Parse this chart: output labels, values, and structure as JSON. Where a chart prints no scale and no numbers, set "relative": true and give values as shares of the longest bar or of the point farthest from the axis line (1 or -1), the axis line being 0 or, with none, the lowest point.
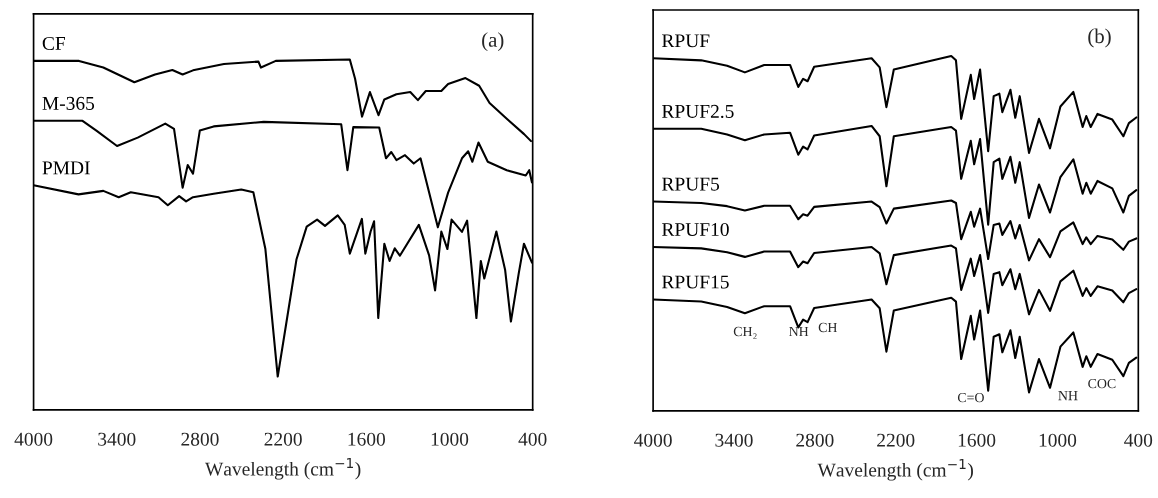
{
  "chart_data": [
    {
      "type": "line",
      "relative": true,
      "xlabel": "Wavelength (cm$^{−1}$)",
      "annotations": [
        "(a)"
      ],
      "xlim": [
        4000,
        400
      ],
      "xticks": [
        4000,
        3400,
        2800,
        2200,
        1600,
        1000,
        400
      ],
      "tick_labels": "x",
      "grid": false,
      "legend": false,
      "series": [
        {
          "name": "CF",
          "color": "#000000",
          "x": [
            4000,
            3672,
            3497,
            3273,
            3124,
            2999,
            2925,
            2850,
            2627,
            2378,
            2360,
            2253,
            1719,
            1681,
            1631,
            1574,
            1512,
            1470,
            1383,
            1283,
            1228,
            1171,
            1059,
            1010,
            885,
            786,
            711,
            587,
            462,
            412
          ],
          "values": [
            0.996,
            0.996,
            0.977,
            0.935,
            0.957,
            0.97,
            0.957,
            0.969,
            0.987,
            0.994,
            0.977,
            0.996,
            1.0,
            0.945,
            0.837,
            0.907,
            0.841,
            0.886,
            0.901,
            0.907,
            0.884,
            0.91,
            0.91,
            0.93,
            0.947,
            0.925,
            0.876,
            0.831,
            0.787,
            0.767
          ]
        },
        {
          "name": "M-365",
          "color": "#000000",
          "x": [
            4000,
            3647,
            3547,
            3398,
            3249,
            3050,
            2987,
            2925,
            2888,
            2850,
            2801,
            2701,
            2340,
            1781,
            1736,
            1694,
            1507,
            1458,
            1420,
            1383,
            1321,
            1258,
            1209,
            1084,
            1010,
            910,
            865,
            835,
            791,
            724,
            587,
            450,
            425,
            405
          ],
          "values": [
            0.825,
            0.825,
            0.797,
            0.753,
            0.777,
            0.817,
            0.802,
            0.634,
            0.699,
            0.674,
            0.797,
            0.809,
            0.822,
            0.815,
            0.684,
            0.807,
            0.806,
            0.718,
            0.736,
            0.713,
            0.727,
            0.703,
            0.718,
            0.521,
            0.62,
            0.718,
            0.738,
            0.708,
            0.763,
            0.708,
            0.684,
            0.669,
            0.684,
            0.649
          ]
        },
        {
          "name": "PMDI",
          "color": "#000000",
          "x": [
            4000,
            3676,
            3497,
            3386,
            3299,
            3099,
            3032,
            2950,
            2900,
            2850,
            2701,
            2502,
            2415,
            2328,
            2239,
            2179,
            2104,
            2030,
            1955,
            1898,
            1806,
            1756,
            1719,
            1632,
            1607,
            1569,
            1544,
            1514,
            1470,
            1432,
            1395,
            1358,
            1221,
            1147,
            1104,
            1059,
            1015,
            985,
            910,
            873,
            806,
            774,
            749,
            662,
            599,
            557,
            500,
            463,
            405
          ],
          "values": [
            0.641,
            0.615,
            0.625,
            0.607,
            0.621,
            0.607,
            0.584,
            0.61,
            0.595,
            0.607,
            0.617,
            0.629,
            0.621,
            0.459,
            0.095,
            0.243,
            0.429,
            0.523,
            0.543,
            0.525,
            0.555,
            0.528,
            0.446,
            0.545,
            0.446,
            0.509,
            0.538,
            0.262,
            0.474,
            0.425,
            0.461,
            0.44,
            0.528,
            0.441,
            0.341,
            0.509,
            0.459,
            0.543,
            0.508,
            0.54,
            0.262,
            0.425,
            0.375,
            0.509,
            0.4,
            0.252,
            0.391,
            0.474,
            0.42
          ]
        }
      ]
    },
    {
      "type": "line",
      "relative": true,
      "xlabel": "Wavelength (cm$^{−1}$)",
      "xlim": [
        4000,
        400
      ],
      "xticks": [
        4000,
        3400,
        2800,
        2200,
        1600,
        1000,
        400
      ],
      "tick_labels": "x",
      "grid": false,
      "legend": false,
      "annotations": [
        "(b)",
        "CH₂",
        "NH",
        "CH",
        "C=O",
        "NH",
        "COC"
      ],
      "x": [
        4000,
        3643,
        3451,
        3319,
        3176,
        2984,
        2923,
        2887,
        2854,
        2805,
        2379,
        2319,
        2269,
        2214,
        1788,
        1753,
        1714,
        1643,
        1618,
        1574,
        1514,
        1473,
        1431,
        1409,
        1349,
        1313,
        1280,
        1211,
        1137,
        1055,
        978,
        882,
        813,
        786,
        753,
        703,
        593,
        511,
        470,
        415
      ],
      "series": [
        {
          "name": "RPUF",
          "color": "#000000",
          "values": [
            0.994,
            0.988,
            0.973,
            0.954,
            0.975,
            0.975,
            0.913,
            0.936,
            0.929,
            0.97,
            0.994,
            0.968,
            0.856,
            0.962,
            1.0,
            0.988,
            0.823,
            0.947,
            0.879,
            0.962,
            0.732,
            0.887,
            0.894,
            0.842,
            0.905,
            0.826,
            0.887,
            0.727,
            0.823,
            0.74,
            0.858,
            0.899,
            0.8,
            0.831,
            0.8,
            0.837,
            0.821,
            0.774,
            0.811,
            0.827
          ]
        },
        {
          "name": "RPUF2.5",
          "color": "#000000",
          "values": [
            0.795,
            0.795,
            0.779,
            0.763,
            0.779,
            0.784,
            0.722,
            0.745,
            0.737,
            0.776,
            0.803,
            0.774,
            0.633,
            0.774,
            0.8,
            0.79,
            0.654,
            0.761,
            0.695,
            0.766,
            0.525,
            0.701,
            0.711,
            0.654,
            0.716,
            0.643,
            0.701,
            0.544,
            0.638,
            0.559,
            0.659,
            0.709,
            0.612,
            0.643,
            0.612,
            0.648,
            0.627,
            0.559,
            0.606,
            0.622
          ]
        },
        {
          "name": "RPUF5",
          "color": "#000000",
          "values": [
            0.59,
            0.586,
            0.577,
            0.565,
            0.578,
            0.578,
            0.54,
            0.554,
            0.55,
            0.575,
            0.59,
            0.574,
            0.528,
            0.57,
            0.593,
            0.586,
            0.484,
            0.561,
            0.519,
            0.57,
            0.428,
            0.524,
            0.528,
            0.496,
            0.535,
            0.486,
            0.524,
            0.424,
            0.484,
            0.433,
            0.506,
            0.531,
            0.47,
            0.489,
            0.47,
            0.493,
            0.483,
            0.454,
            0.477,
            0.486
          ]
        },
        {
          "name": "RPUF10",
          "color": "#000000",
          "values": [
            0.462,
            0.458,
            0.447,
            0.434,
            0.449,
            0.449,
            0.405,
            0.421,
            0.416,
            0.445,
            0.462,
            0.444,
            0.357,
            0.439,
            0.466,
            0.458,
            0.341,
            0.429,
            0.38,
            0.439,
            0.276,
            0.386,
            0.391,
            0.354,
            0.399,
            0.343,
            0.386,
            0.272,
            0.341,
            0.282,
            0.365,
            0.395,
            0.324,
            0.346,
            0.324,
            0.351,
            0.339,
            0.306,
            0.332,
            0.343
          ]
        },
        {
          "name": "RPUF15",
          "color": "#000000",
          "values": [
            0.314,
            0.308,
            0.293,
            0.275,
            0.295,
            0.295,
            0.235,
            0.257,
            0.25,
            0.29,
            0.314,
            0.289,
            0.167,
            0.283,
            0.319,
            0.308,
            0.146,
            0.268,
            0.201,
            0.283,
            0.057,
            0.209,
            0.216,
            0.165,
            0.227,
            0.149,
            0.209,
            0.052,
            0.146,
            0.065,
            0.181,
            0.221,
            0.124,
            0.154,
            0.124,
            0.16,
            0.144,
            0.098,
            0.135,
            0.15
          ]
        }
      ]
    }
  ]
}
